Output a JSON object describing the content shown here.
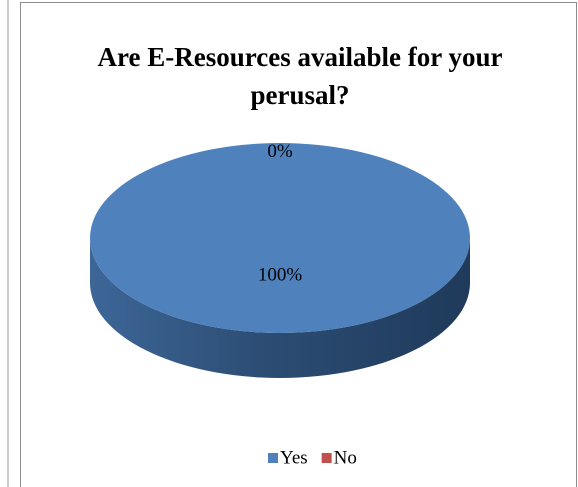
{
  "chart_data": {
    "type": "pie",
    "title": "Are E-Resources available for your perusal?",
    "categories": [
      "Yes",
      "No"
    ],
    "values": [
      100,
      0
    ],
    "value_labels": [
      "100%",
      "0%"
    ],
    "colors": [
      "#4f81bd",
      "#c0504d"
    ],
    "legend": "bottom"
  }
}
